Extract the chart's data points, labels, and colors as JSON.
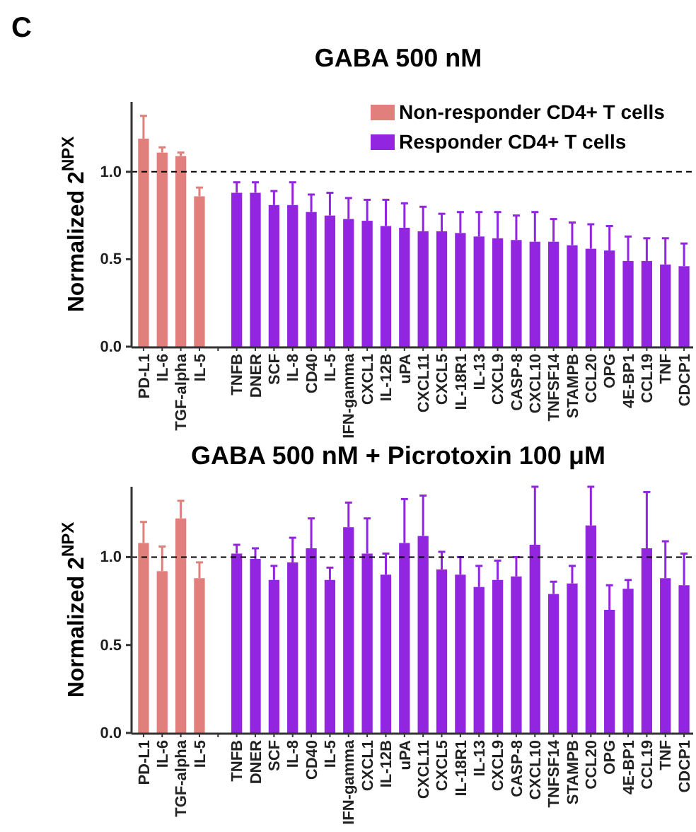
{
  "chart_data": [
    {
      "type": "bar",
      "title": "GABA 500 nM",
      "ylabel": "Normalized 2$^{NPX}$",
      "annotations": [
        "C"
      ],
      "categories": [
        "PD-L1",
        "IL-6",
        "TGF-alpha",
        "IL-5",
        null,
        "TNFB",
        "DNER",
        "SCF",
        "IL-8",
        "CD40",
        "IL-5",
        "IFN-gamma",
        "CXCL1",
        "IL-12B",
        "uPA",
        "CXCL11",
        "CXCL5",
        "IL-18R1",
        "IL-13",
        "CXCL9",
        "CASP-8",
        "CXCL10",
        "TNFSF14",
        "STAMPB",
        "CCL20",
        "OPG",
        "4E-BP1",
        "CCL19",
        "TNF",
        "CDCP1"
      ],
      "series": [
        {
          "name": "Non-responder CD4+ T cells",
          "color": "#e07f7b",
          "values": [
            1.19,
            1.11,
            1.09,
            0.86,
            null,
            null,
            null,
            null,
            null,
            null,
            null,
            null,
            null,
            null,
            null,
            null,
            null,
            null,
            null,
            null,
            null,
            null,
            null,
            null,
            null,
            null,
            null,
            null,
            null,
            null
          ],
          "errors": [
            [
              1.19,
              1.32
            ],
            [
              1.11,
              1.14
            ],
            [
              1.09,
              1.11
            ],
            [
              0.86,
              0.91
            ],
            null,
            null,
            null,
            null,
            null,
            null,
            null,
            null,
            null,
            null,
            null,
            null,
            null,
            null,
            null,
            null,
            null,
            null,
            null,
            null,
            null,
            null,
            null,
            null,
            null,
            null
          ]
        },
        {
          "name": "Responder CD4+ T cells",
          "color": "#9125e0",
          "values": [
            null,
            null,
            null,
            null,
            null,
            0.88,
            0.88,
            0.81,
            0.81,
            0.77,
            0.75,
            0.73,
            0.72,
            0.69,
            0.68,
            0.66,
            0.66,
            0.65,
            0.63,
            0.62,
            0.61,
            0.6,
            0.6,
            0.58,
            0.56,
            0.55,
            0.49,
            0.49,
            0.47,
            0.46
          ],
          "errors": [
            null,
            null,
            null,
            null,
            null,
            [
              0.88,
              0.94
            ],
            [
              0.88,
              0.94
            ],
            [
              0.81,
              0.89
            ],
            [
              0.81,
              0.94
            ],
            [
              0.77,
              0.87
            ],
            [
              0.75,
              0.88
            ],
            [
              0.73,
              0.85
            ],
            [
              0.72,
              0.84
            ],
            [
              0.69,
              0.84
            ],
            [
              0.68,
              0.82
            ],
            [
              0.66,
              0.8
            ],
            [
              0.66,
              0.76
            ],
            [
              0.65,
              0.77
            ],
            [
              0.63,
              0.77
            ],
            [
              0.62,
              0.77
            ],
            [
              0.61,
              0.75
            ],
            [
              0.6,
              0.77
            ],
            [
              0.6,
              0.73
            ],
            [
              0.58,
              0.71
            ],
            [
              0.56,
              0.7
            ],
            [
              0.55,
              0.69
            ],
            [
              0.49,
              0.63
            ],
            [
              0.49,
              0.62
            ],
            [
              0.47,
              0.62
            ],
            [
              0.46,
              0.59
            ]
          ]
        }
      ],
      "ylim": [
        0,
        1.4
      ],
      "yticks": [
        {
          "value": 0,
          "label": "0.0"
        },
        {
          "value": 0.5,
          "label": "0.5"
        },
        {
          "value": 1,
          "label": "1.0"
        }
      ],
      "ref_lines": [
        {
          "axis": "y",
          "value": 1,
          "line_style": "dashed"
        }
      ],
      "legend": "top right",
      "grid": false
    },
    {
      "type": "bar",
      "title": "GABA 500 nM + Picrotoxin 100 μM",
      "ylabel": "Normalized 2$^{NPX}$",
      "categories": [
        "PD-L1",
        "IL-6",
        "TGF-alpha",
        "IL-5",
        null,
        "TNFB",
        "DNER",
        "SCF",
        "IL-8",
        "CD40",
        "IL-5",
        "IFN-gamma",
        "CXCL1",
        "IL-12B",
        "uPA",
        "CXCL11",
        "CXCL5",
        "IL-18R1",
        "IL-13",
        "CXCL9",
        "CASP-8",
        "CXCL10",
        "TNFSF14",
        "STAMPB",
        "CCL20",
        "OPG",
        "4E-BP1",
        "CCL19",
        "TNF",
        "CDCP1"
      ],
      "series": [
        {
          "color": "#e07f7b",
          "values": [
            1.08,
            0.92,
            1.22,
            0.88,
            null,
            null,
            null,
            null,
            null,
            null,
            null,
            null,
            null,
            null,
            null,
            null,
            null,
            null,
            null,
            null,
            null,
            null,
            null,
            null,
            null,
            null,
            null,
            null,
            null,
            null
          ],
          "errors": [
            [
              1.08,
              1.2
            ],
            [
              0.92,
              1.06
            ],
            [
              1.22,
              1.32
            ],
            [
              0.88,
              0.97
            ],
            null,
            null,
            null,
            null,
            null,
            null,
            null,
            null,
            null,
            null,
            null,
            null,
            null,
            null,
            null,
            null,
            null,
            null,
            null,
            null,
            null,
            null,
            null,
            null,
            null,
            null
          ]
        },
        {
          "color": "#9125e0",
          "values": [
            null,
            null,
            null,
            null,
            null,
            1.02,
            0.99,
            0.87,
            0.97,
            1.05,
            0.87,
            1.17,
            1.02,
            0.9,
            1.08,
            1.12,
            0.93,
            0.9,
            0.83,
            0.87,
            0.89,
            1.07,
            0.79,
            0.85,
            1.18,
            0.7,
            0.82,
            1.05,
            0.88,
            0.84
          ],
          "errors": [
            null,
            null,
            null,
            null,
            null,
            [
              1.02,
              1.07
            ],
            [
              0.99,
              1.05
            ],
            [
              0.87,
              0.95
            ],
            [
              0.97,
              1.11
            ],
            [
              1.05,
              1.22
            ],
            [
              0.87,
              0.94
            ],
            [
              1.17,
              1.31
            ],
            [
              1.02,
              1.22
            ],
            [
              0.9,
              1.02
            ],
            [
              1.08,
              1.33
            ],
            [
              1.12,
              1.35
            ],
            [
              0.93,
              1.03
            ],
            [
              0.9,
              1.0
            ],
            [
              0.83,
              0.95
            ],
            [
              0.87,
              0.98
            ],
            [
              0.89,
              1.0
            ],
            [
              1.07,
              1.4
            ],
            [
              0.79,
              0.86
            ],
            [
              0.85,
              0.95
            ],
            [
              1.18,
              1.4
            ],
            [
              0.7,
              0.84
            ],
            [
              0.82,
              0.87
            ],
            [
              1.05,
              1.37
            ],
            [
              0.88,
              1.09
            ],
            [
              0.84,
              1.02
            ]
          ]
        }
      ],
      "ylim": [
        0,
        1.4
      ],
      "yticks": [
        {
          "value": 0,
          "label": "0.0"
        },
        {
          "value": 0.5,
          "label": "0.5"
        },
        {
          "value": 1,
          "label": "1.0"
        }
      ],
      "ref_lines": [
        {
          "axis": "y",
          "value": 1,
          "line_style": "dashed"
        }
      ],
      "legend": false,
      "grid": false
    }
  ]
}
